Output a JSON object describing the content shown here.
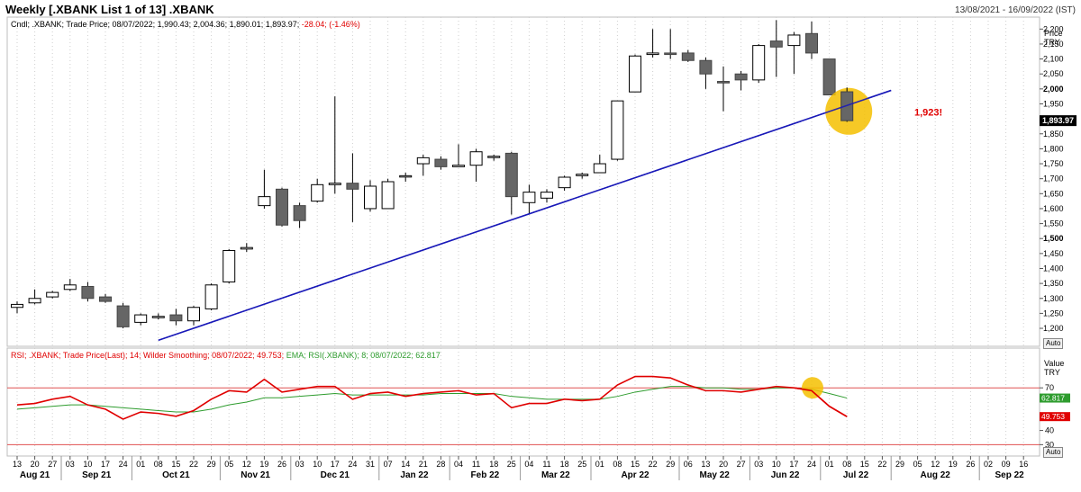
{
  "header": {
    "title": "Weekly [.XBANK List 1 of 13] .XBANK",
    "date_range": "13/08/2021 - 16/09/2022 (IST)"
  },
  "price_panel": {
    "legend_prefix": "Cndl; .XBANK; Trade Price; 08/07/2022; 1,990.43; 2,004.36; 1,890.01; 1,893.97;",
    "legend_change": "-28.04; (-1.46%)",
    "axis_title_1": "Price",
    "axis_title_2": "TRY",
    "auto_label": "Auto",
    "last_price_label": "1,893.97",
    "annotation": "1,923!",
    "annotation_color": "#e00000",
    "trendline_color": "#1a1ab8",
    "highlight_color": "#f5c000"
  },
  "rsi_panel": {
    "legend_rsi": "RSI; .XBANK; Trade Price(Last); 14; Wilder Smoothing; 08/07/2022; 49.753;",
    "legend_ema": "EMA; RSI(.XBANK); 8; 08/07/2022; 62.817",
    "axis_title_1": "Value",
    "axis_title_2": "TRY",
    "auto_label": "Auto",
    "rsi_label": "49.753",
    "ema_label": "62.817",
    "rsi_color": "#e00000",
    "ema_color": "#2e9c2e"
  },
  "chart_data": [
    {
      "type": "candlestick",
      "title": "Weekly [.XBANK List 1 of 13] .XBANK",
      "ylabel": "Price TRY",
      "ylim": [
        1140,
        2240
      ],
      "y_ticks": [
        1200,
        1250,
        1300,
        1350,
        1400,
        1450,
        1500,
        1550,
        1600,
        1650,
        1700,
        1750,
        1800,
        1850,
        1900,
        1950,
        2000,
        2050,
        2100,
        2150,
        2200
      ],
      "y_ticks_bold": [
        1500,
        2000
      ],
      "x_tick_labels": [
        "13",
        "20",
        "27",
        "03",
        "10",
        "17",
        "24",
        "01",
        "08",
        "15",
        "22",
        "29",
        "05",
        "12",
        "19",
        "26",
        "03",
        "10",
        "17",
        "24",
        "31",
        "07",
        "14",
        "21",
        "28",
        "04",
        "11",
        "18",
        "25",
        "04",
        "11",
        "18",
        "25",
        "01",
        "08",
        "15",
        "22",
        "29",
        "06",
        "13",
        "20",
        "27",
        "03",
        "10",
        "17",
        "24",
        "01",
        "08",
        "15",
        "22",
        "29",
        "05",
        "12",
        "19",
        "26",
        "02",
        "09",
        "16"
      ],
      "month_labels": [
        {
          "label": "Aug 21",
          "at": 0
        },
        {
          "label": "Sep 21",
          "at": 3
        },
        {
          "label": "Oct 21",
          "at": 7
        },
        {
          "label": "Nov 21",
          "at": 12
        },
        {
          "label": "Dec 21",
          "at": 16
        },
        {
          "label": "Jan 22",
          "at": 21
        },
        {
          "label": "Feb 22",
          "at": 25
        },
        {
          "label": "Mar 22",
          "at": 29
        },
        {
          "label": "Apr 22",
          "at": 33
        },
        {
          "label": "May 22",
          "at": 38
        },
        {
          "label": "Jun 22",
          "at": 42
        },
        {
          "label": "Jul 22",
          "at": 46
        },
        {
          "label": "Aug 22",
          "at": 50
        },
        {
          "label": "Sep 22",
          "at": 55
        }
      ],
      "candles": [
        {
          "o": 1270,
          "h": 1290,
          "l": 1250,
          "c": 1280
        },
        {
          "o": 1285,
          "h": 1330,
          "l": 1280,
          "c": 1300
        },
        {
          "o": 1305,
          "h": 1325,
          "l": 1300,
          "c": 1320
        },
        {
          "o": 1330,
          "h": 1365,
          "l": 1325,
          "c": 1345
        },
        {
          "o": 1340,
          "h": 1355,
          "l": 1290,
          "c": 1300
        },
        {
          "o": 1305,
          "h": 1315,
          "l": 1285,
          "c": 1290
        },
        {
          "o": 1275,
          "h": 1285,
          "l": 1200,
          "c": 1205
        },
        {
          "o": 1220,
          "h": 1250,
          "l": 1210,
          "c": 1245
        },
        {
          "o": 1240,
          "h": 1250,
          "l": 1230,
          "c": 1240
        },
        {
          "o": 1245,
          "h": 1265,
          "l": 1210,
          "c": 1225
        },
        {
          "o": 1225,
          "h": 1275,
          "l": 1210,
          "c": 1270
        },
        {
          "o": 1265,
          "h": 1350,
          "l": 1260,
          "c": 1345
        },
        {
          "o": 1355,
          "h": 1465,
          "l": 1350,
          "c": 1460
        },
        {
          "o": 1465,
          "h": 1485,
          "l": 1455,
          "c": 1470
        },
        {
          "o": 1610,
          "h": 1730,
          "l": 1600,
          "c": 1640
        },
        {
          "o": 1665,
          "h": 1670,
          "l": 1540,
          "c": 1545
        },
        {
          "o": 1610,
          "h": 1620,
          "l": 1535,
          "c": 1560
        },
        {
          "o": 1625,
          "h": 1700,
          "l": 1620,
          "c": 1680
        },
        {
          "o": 1680,
          "h": 1975,
          "l": 1650,
          "c": 1685
        },
        {
          "o": 1685,
          "h": 1785,
          "l": 1555,
          "c": 1665
        },
        {
          "o": 1600,
          "h": 1695,
          "l": 1590,
          "c": 1675
        },
        {
          "o": 1600,
          "h": 1700,
          "l": 1600,
          "c": 1690
        },
        {
          "o": 1710,
          "h": 1720,
          "l": 1690,
          "c": 1710
        },
        {
          "o": 1750,
          "h": 1780,
          "l": 1710,
          "c": 1770
        },
        {
          "o": 1765,
          "h": 1775,
          "l": 1730,
          "c": 1740
        },
        {
          "o": 1740,
          "h": 1815,
          "l": 1740,
          "c": 1745
        },
        {
          "o": 1745,
          "h": 1800,
          "l": 1690,
          "c": 1790
        },
        {
          "o": 1775,
          "h": 1780,
          "l": 1760,
          "c": 1775
        },
        {
          "o": 1785,
          "h": 1790,
          "l": 1580,
          "c": 1640
        },
        {
          "o": 1620,
          "h": 1680,
          "l": 1580,
          "c": 1655
        },
        {
          "o": 1635,
          "h": 1665,
          "l": 1620,
          "c": 1655
        },
        {
          "o": 1670,
          "h": 1710,
          "l": 1660,
          "c": 1705
        },
        {
          "o": 1710,
          "h": 1720,
          "l": 1700,
          "c": 1715
        },
        {
          "o": 1720,
          "h": 1780,
          "l": 1720,
          "c": 1750
        },
        {
          "o": 1765,
          "h": 1960,
          "l": 1760,
          "c": 1960
        },
        {
          "o": 1990,
          "h": 2115,
          "l": 1990,
          "c": 2110
        },
        {
          "o": 2115,
          "h": 2200,
          "l": 2105,
          "c": 2120
        },
        {
          "o": 2120,
          "h": 2200,
          "l": 2100,
          "c": 2115
        },
        {
          "o": 2120,
          "h": 2130,
          "l": 2090,
          "c": 2095
        },
        {
          "o": 2095,
          "h": 2105,
          "l": 2000,
          "c": 2050
        },
        {
          "o": 2025,
          "h": 2075,
          "l": 1925,
          "c": 2020
        },
        {
          "o": 2050,
          "h": 2060,
          "l": 1995,
          "c": 2030
        },
        {
          "o": 2030,
          "h": 2150,
          "l": 2020,
          "c": 2145
        },
        {
          "o": 2160,
          "h": 2230,
          "l": 2040,
          "c": 2140
        },
        {
          "o": 2145,
          "h": 2190,
          "l": 2050,
          "c": 2180
        },
        {
          "o": 2185,
          "h": 2225,
          "l": 2100,
          "c": 2120
        },
        {
          "o": 2100,
          "h": 2100,
          "l": 1980,
          "c": 1980
        },
        {
          "o": 1990.43,
          "h": 2004.36,
          "l": 1890.01,
          "c": 1893.97
        }
      ],
      "trendline": {
        "from": {
          "i": 8,
          "price": 1160
        },
        "to": {
          "i": 49.5,
          "price": 1995
        }
      },
      "annotation": {
        "text": "1,923!",
        "i": 48.5,
        "price": 1923
      }
    },
    {
      "type": "line",
      "title": "RSI",
      "ylabel": "Value TRY",
      "ylim": [
        22,
        98
      ],
      "y_ticks": [
        30,
        40,
        70
      ],
      "reference_lines": [
        70,
        30
      ],
      "series": [
        {
          "name": "RSI",
          "values": [
            58,
            59,
            62,
            64,
            58,
            55,
            48,
            53,
            52,
            50,
            54,
            62,
            68,
            67,
            76,
            67,
            69,
            71,
            71,
            62,
            66,
            67,
            64,
            66,
            67,
            68,
            65,
            66,
            56,
            59,
            59,
            62,
            61,
            62,
            72,
            78,
            78,
            77,
            72,
            68,
            68,
            67,
            69,
            71,
            70,
            68,
            57,
            49.753
          ]
        },
        {
          "name": "EMA",
          "values": [
            55,
            56,
            57,
            58,
            58,
            57,
            56,
            55,
            54,
            53,
            53,
            55,
            58,
            60,
            63,
            63,
            64,
            65,
            66,
            65,
            65,
            65,
            65,
            65,
            66,
            66,
            66,
            66,
            64,
            63,
            62,
            62,
            62,
            62,
            64,
            67,
            69,
            71,
            71,
            70,
            70,
            69,
            69,
            70,
            70,
            69,
            66,
            62.817
          ]
        }
      ]
    }
  ]
}
